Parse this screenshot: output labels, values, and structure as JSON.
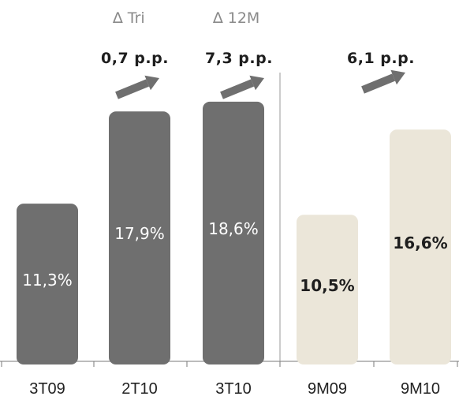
{
  "headers": {
    "quarter": "∆ Tri",
    "twelve_months": "∆ 12M"
  },
  "deltas": {
    "quarter": "0,7 p.p.",
    "twelve_months": "7,3 p.p.",
    "nine_months": "6,1 p.p."
  },
  "colors": {
    "quarterly_bar": "#6f6f6f",
    "ytd_bar": "#ebe6d9",
    "label_on_dark": "#ffffff",
    "label_on_light": "#1e1e1e",
    "axis": "#7a7a7a",
    "arrow": "#6f6f6f"
  },
  "chart_data": {
    "type": "bar",
    "categories": [
      "3T09",
      "2T10",
      "3T10",
      "9M09",
      "9M10"
    ],
    "values": [
      11.3,
      17.9,
      18.6,
      10.5,
      16.6
    ],
    "labels": [
      "11,3%",
      "17,9%",
      "18,6%",
      "10,5%",
      "16,6%"
    ],
    "groups": [
      "quarterly",
      "quarterly",
      "quarterly",
      "ytd",
      "ytd"
    ],
    "title": "",
    "xlabel": "",
    "ylabel": "",
    "ylim": [
      0,
      19.5
    ],
    "grid": false
  }
}
